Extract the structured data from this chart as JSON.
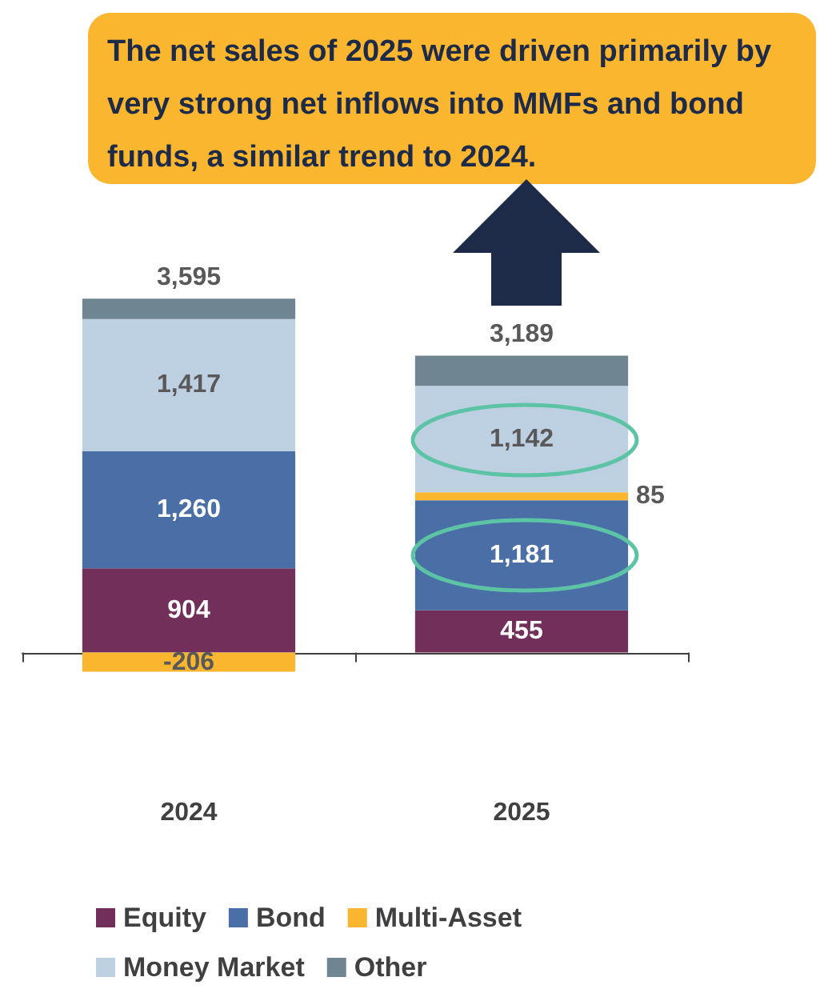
{
  "chart_data": {
    "type": "bar",
    "stacked": true,
    "categories": [
      "2024",
      "2025"
    ],
    "series": [
      {
        "name": "Equity",
        "color": "#722f5a",
        "values": [
          904,
          455
        ],
        "value_labels": [
          "904",
          "455"
        ]
      },
      {
        "name": "Bond",
        "color": "#4a6ea6",
        "values": [
          1260,
          1181
        ],
        "value_labels": [
          "1,260",
          "1,181"
        ]
      },
      {
        "name": "Multi-Asset",
        "color": "#fbb62f",
        "values": [
          -206,
          85
        ],
        "value_labels": [
          "-206",
          "85"
        ]
      },
      {
        "name": "Money Market",
        "color": "#bdd0e2",
        "values": [
          1417,
          1142
        ],
        "value_labels": [
          "1,417",
          "1,142"
        ]
      },
      {
        "name": "Other",
        "color": "#6f8592",
        "values": [
          220,
          326
        ],
        "value_labels": [
          null,
          null
        ]
      }
    ],
    "totals": [
      "3,595",
      "3,189"
    ],
    "annotations": [
      "The net sales of 2025 were driven primarily by very strong net inflows into MMFs and bond funds, a similar trend to 2024."
    ],
    "legend": "bottom",
    "grid": false
  }
}
